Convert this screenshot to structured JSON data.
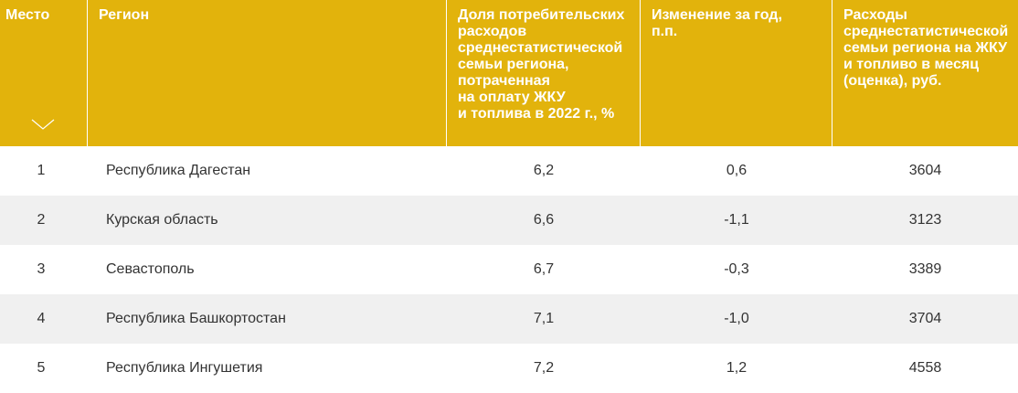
{
  "table": {
    "headers": {
      "place": "Место",
      "region": "Регион",
      "share": "Доля потребительских\nрасходов\nсреднестатистической\nсемьи региона,\nпотраченная\nна оплату ЖКУ\nи топлива в 2022 г., %",
      "change": "Изменение за год,\nп.п.",
      "spending": "Расходы\nсреднестатистической\nсемьи региона на ЖКУ\nи топливо в месяц\n(оценка), руб."
    },
    "sort_icon": "chevron-down-icon",
    "rows": [
      {
        "place": "1",
        "region": "Республика Дагестан",
        "share": "6,2",
        "change": "0,6",
        "spending": "3604"
      },
      {
        "place": "2",
        "region": "Курская область",
        "share": "6,6",
        "change": "-1,1",
        "spending": "3123"
      },
      {
        "place": "3",
        "region": "Севастополь",
        "share": "6,7",
        "change": "-0,3",
        "spending": "3389"
      },
      {
        "place": "4",
        "region": "Республика Башкортостан",
        "share": "7,1",
        "change": "-1,0",
        "spending": "3704"
      },
      {
        "place": "5",
        "region": "Республика Ингушетия",
        "share": "7,2",
        "change": "1,2",
        "spending": "4558"
      }
    ],
    "colors": {
      "header_bg": "#e2b30c",
      "header_text": "#ffffff",
      "alt_row_bg": "#f0f0f0"
    }
  }
}
